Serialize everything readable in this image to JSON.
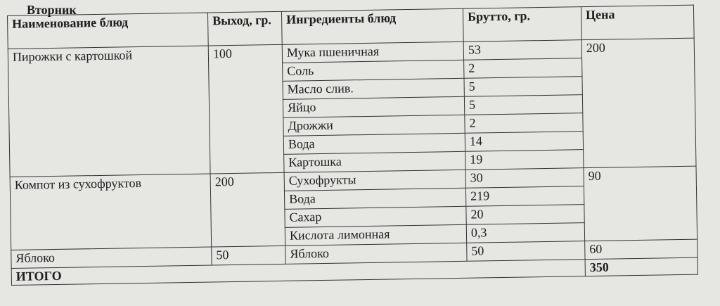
{
  "day": "Вторник",
  "headers": {
    "name": "Наименование блюд",
    "yield": "Выход, гр.",
    "ingredients": "Ингредиенты блюд",
    "gross": "Брутто, гр.",
    "price": "Цена"
  },
  "dishes": [
    {
      "name": "Пирожки с картошкой",
      "yield": "100",
      "price": "200",
      "ingredients": [
        {
          "name": "Мука пшеничная",
          "gross": "53"
        },
        {
          "name": "Соль",
          "gross": "2"
        },
        {
          "name": "Масло слив.",
          "gross": "5"
        },
        {
          "name": "Яйцо",
          "gross": "5"
        },
        {
          "name": "Дрожжи",
          "gross": "2"
        },
        {
          "name": "Вода",
          "gross": "14"
        },
        {
          "name": "Картошка",
          "gross": "19"
        }
      ]
    },
    {
      "name": "Компот из сухофруктов",
      "yield": "200",
      "price": "90",
      "ingredients": [
        {
          "name": "Сухофрукты",
          "gross": "30"
        },
        {
          "name": "Вода",
          "gross": "219"
        },
        {
          "name": "Сахар",
          "gross": "20"
        },
        {
          "name": "Кислота лимонная",
          "gross": "0,3"
        }
      ]
    },
    {
      "name": "Яблоко",
      "yield": "50",
      "price": "60",
      "ingredients": [
        {
          "name": "Яблоко",
          "gross": "50"
        }
      ]
    }
  ],
  "total": {
    "label": "ИТОГО",
    "value": "350"
  }
}
